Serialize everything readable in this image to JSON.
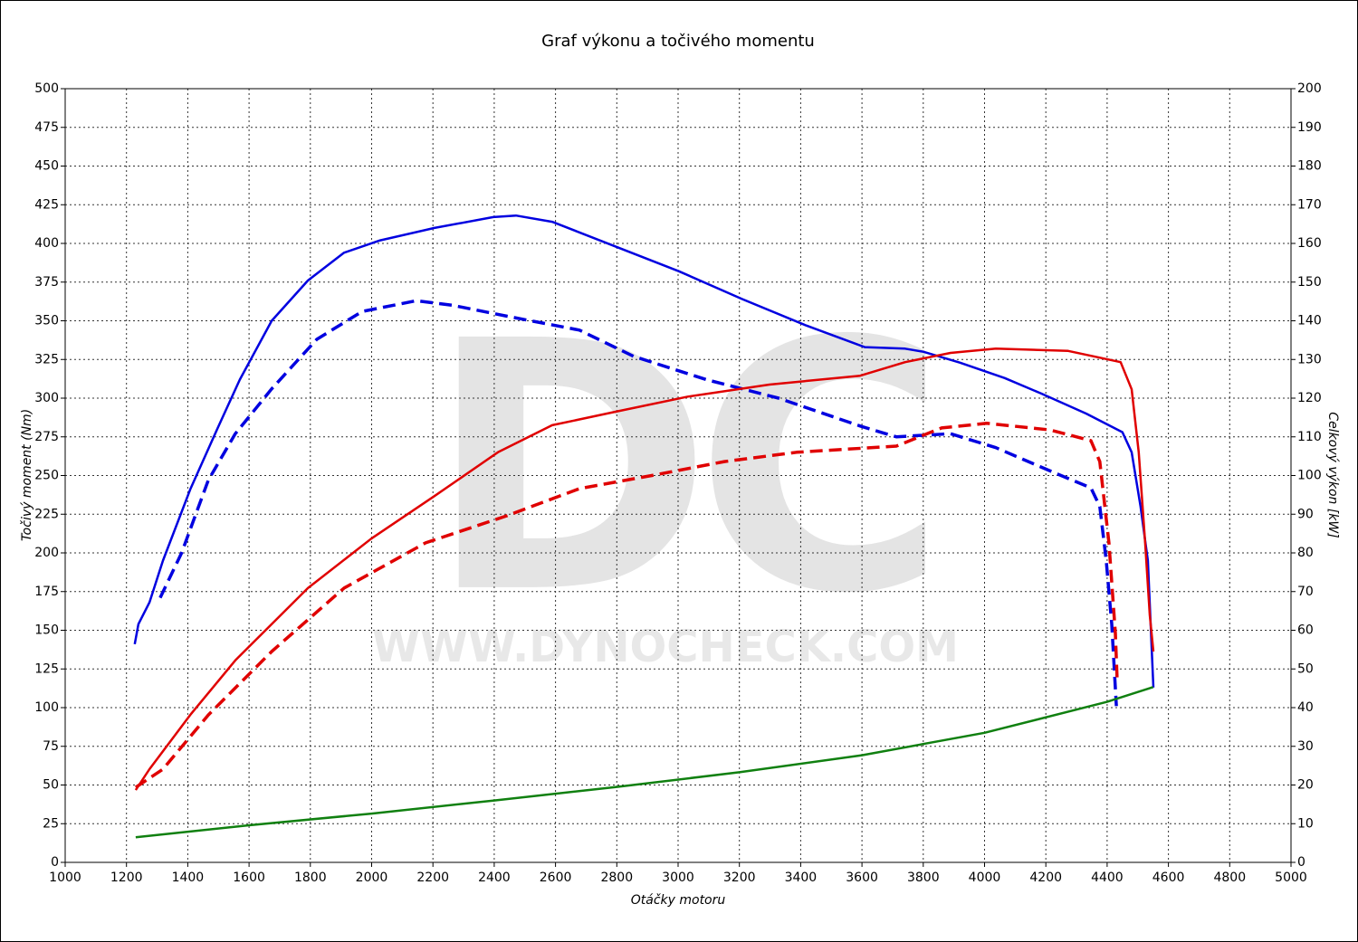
{
  "chart_data": {
    "type": "line",
    "title": "Graf výkonu a točivého momentu",
    "x_label": "Otáčky motoru",
    "y_label": "Točivý moment (Nm)",
    "y2_label": "Celkový výkon [kW]",
    "watermark": "DC",
    "watermark_url": "WWW.DYNOCHECK.COM",
    "xlim": [
      1000,
      5000
    ],
    "xticks": [
      1000,
      1200,
      1400,
      1600,
      1800,
      2000,
      2200,
      2400,
      2600,
      2800,
      3000,
      3200,
      3400,
      3600,
      3800,
      4000,
      4200,
      4400,
      4600,
      4800,
      5000
    ],
    "ylim": [
      0,
      500
    ],
    "yticks": [
      0,
      25,
      50,
      75,
      100,
      125,
      150,
      175,
      200,
      225,
      250,
      275,
      300,
      325,
      350,
      375,
      400,
      425,
      450,
      475,
      500
    ],
    "y2lim": [
      0,
      200
    ],
    "y2ticks": [
      0,
      10,
      20,
      30,
      40,
      50,
      60,
      70,
      80,
      90,
      100,
      110,
      120,
      130,
      140,
      150,
      160,
      170,
      180,
      190,
      200
    ],
    "grid": true,
    "series": [
      {
        "color": "#0000e0",
        "dash": false,
        "axis": "y",
        "x": [
          1227,
          1239,
          1275,
          1319,
          1408,
          1496,
          1570,
          1674,
          1792,
          1910,
          2028,
          2205,
          2397,
          2471,
          2589,
          2796,
          3003,
          3210,
          3417,
          3609,
          3741,
          3800,
          3919,
          4066,
          4185,
          4332,
          4450,
          4480,
          4509,
          4533,
          4551
        ],
        "values": [
          141,
          154,
          168,
          195,
          241,
          280,
          312,
          350,
          376,
          394,
          402,
          410,
          417,
          418,
          414,
          398,
          382,
          364,
          347,
          333,
          332,
          330,
          323,
          313,
          303,
          290,
          278,
          265,
          230,
          195,
          113
        ]
      },
      {
        "color": "#0000e0",
        "dash": true,
        "axis": "y",
        "x": [
          1310,
          1380,
          1467,
          1555,
          1674,
          1821,
          1969,
          2146,
          2264,
          2441,
          2678,
          2855,
          3092,
          3328,
          3594,
          3712,
          3889,
          4037,
          4214,
          4347,
          4376,
          4397,
          4415,
          4430
        ],
        "values": [
          171,
          200,
          247,
          277,
          306,
          338,
          356,
          363,
          360,
          353,
          344,
          327,
          312,
          300,
          282,
          275,
          277,
          268,
          253,
          242,
          230,
          195,
          154,
          101
        ]
      },
      {
        "color": "#e00000",
        "dash": false,
        "axis": "y2",
        "x": [
          1230,
          1275,
          1408,
          1555,
          1792,
          1999,
          2205,
          2412,
          2589,
          2796,
          3032,
          3298,
          3594,
          3741,
          3889,
          4037,
          4273,
          4444,
          4480,
          4503,
          4524,
          4539,
          4551
        ],
        "values": [
          18.7,
          24.1,
          38.1,
          52.2,
          70.9,
          83.7,
          94.7,
          106,
          113,
          116.5,
          120.4,
          123.5,
          125.8,
          129.3,
          131.7,
          132.8,
          132.2,
          129.3,
          122.3,
          106,
          82.6,
          63.9,
          54.5
        ]
      },
      {
        "color": "#e00000",
        "dash": true,
        "axis": "y2",
        "x": [
          1230,
          1319,
          1467,
          1674,
          1910,
          2176,
          2441,
          2678,
          2914,
          3151,
          3387,
          3712,
          3860,
          4007,
          4214,
          4347,
          4376,
          4406,
          4427,
          4433
        ],
        "values": [
          19.4,
          24.1,
          38.1,
          54.5,
          70.9,
          82.6,
          89.6,
          96.6,
          100,
          103.6,
          106,
          107.6,
          112.3,
          113.5,
          111.8,
          109,
          103.6,
          82.6,
          59.2,
          46.3
        ]
      },
      {
        "color": "#108010",
        "dash": false,
        "axis": "y2",
        "x": [
          1230,
          1600,
          2000,
          2400,
          2800,
          3200,
          3600,
          4000,
          4400,
          4550
        ],
        "values": [
          6.5,
          9.6,
          12.6,
          16,
          19.5,
          23.3,
          27.7,
          33.5,
          41.5,
          45.3
        ]
      }
    ]
  }
}
